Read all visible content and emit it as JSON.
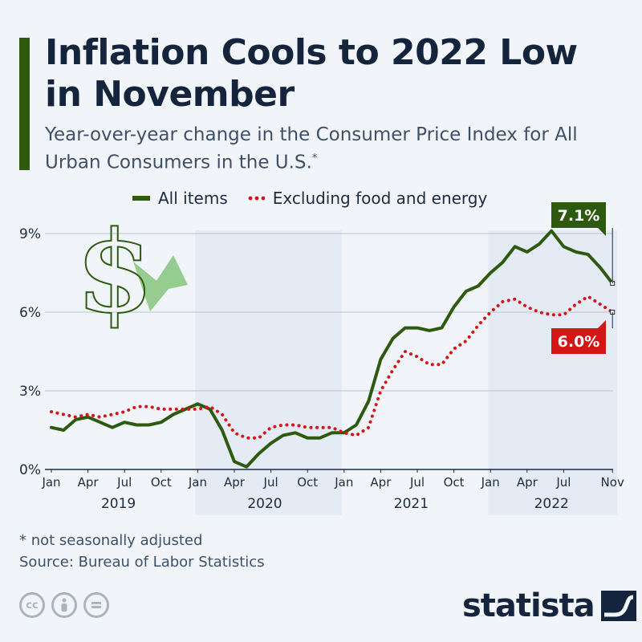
{
  "header": {
    "title": "Inflation Cools to 2022 Low in November",
    "subtitle": "Year-over-year change in the Consumer Price Index for All Urban Consumers in the U.S.",
    "subtitle_mark": "*"
  },
  "footer": {
    "note": "* not seasonally adjusted",
    "source": "Source: Bureau of Labor Statistics",
    "brand": "statista",
    "license_icons": [
      "cc-icon",
      "person-icon",
      "equals-icon"
    ]
  },
  "colors": {
    "accent": "#2e5a10",
    "all_items": "#2e5a10",
    "core": "#d51616",
    "title": "#14243c",
    "band": "#e5ebf4"
  },
  "decor": {
    "icon": "dollar-arrow-icon"
  },
  "chart_data": {
    "type": "line",
    "title": "Inflation Cools to 2022 Low in November",
    "x_tick_labels": [
      "Jan",
      "Apr",
      "Jul",
      "Oct",
      "Jan",
      "Apr",
      "Jul",
      "Oct",
      "Jan",
      "Apr",
      "Jul",
      "Oct",
      "Jan",
      "Apr",
      "Jul",
      "Nov"
    ],
    "x_tick_months": [
      0,
      3,
      6,
      9,
      12,
      15,
      18,
      21,
      24,
      27,
      30,
      33,
      36,
      39,
      42,
      46
    ],
    "year_labels": [
      {
        "label": "2019",
        "center_month": 5.5
      },
      {
        "label": "2020",
        "center_month": 17.5
      },
      {
        "label": "2021",
        "center_month": 29.5
      },
      {
        "label": "2022",
        "center_month": 41
      }
    ],
    "shaded_years": [
      2020,
      2022
    ],
    "ylim": [
      0,
      9
    ],
    "y_ticks": [
      0,
      3,
      6,
      9
    ],
    "y_tick_labels": [
      "0%",
      "3%",
      "6%",
      "9%"
    ],
    "grid": true,
    "legend": "top",
    "series": [
      {
        "name": "All items",
        "style": "solid",
        "values": [
          1.6,
          1.5,
          1.9,
          2.0,
          1.8,
          1.6,
          1.8,
          1.7,
          1.7,
          1.8,
          2.1,
          2.3,
          2.5,
          2.3,
          1.5,
          0.3,
          0.1,
          0.6,
          1.0,
          1.3,
          1.4,
          1.2,
          1.2,
          1.4,
          1.4,
          1.7,
          2.6,
          4.2,
          5.0,
          5.4,
          5.4,
          5.3,
          5.4,
          6.2,
          6.8,
          7.0,
          7.5,
          7.9,
          8.5,
          8.3,
          8.6,
          9.1,
          8.5,
          8.3,
          8.2,
          7.7,
          7.1
        ],
        "end_label": "7.1%"
      },
      {
        "name": "Excluding food and energy",
        "style": "dotted",
        "values": [
          2.2,
          2.1,
          2.0,
          2.1,
          2.0,
          2.1,
          2.2,
          2.4,
          2.4,
          2.3,
          2.3,
          2.3,
          2.3,
          2.4,
          2.1,
          1.4,
          1.2,
          1.2,
          1.6,
          1.7,
          1.7,
          1.6,
          1.6,
          1.6,
          1.4,
          1.3,
          1.6,
          3.0,
          3.8,
          4.5,
          4.3,
          4.0,
          4.0,
          4.6,
          4.9,
          5.5,
          6.0,
          6.4,
          6.5,
          6.2,
          6.0,
          5.9,
          5.9,
          6.3,
          6.6,
          6.3,
          6.0
        ],
        "end_label": "6.0%"
      }
    ]
  }
}
